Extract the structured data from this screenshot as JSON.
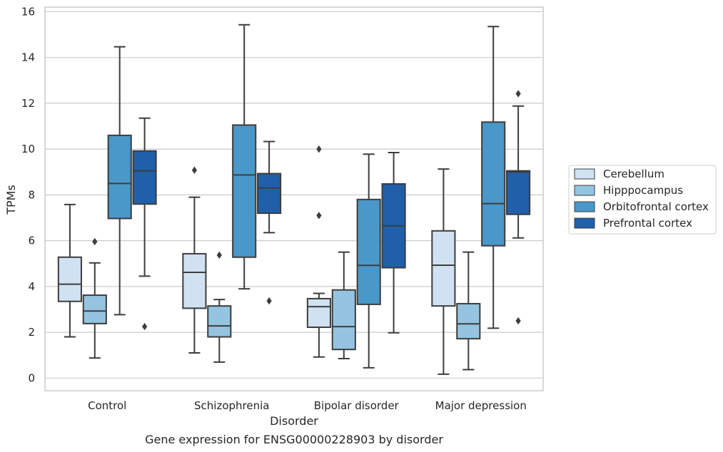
{
  "chart_data": {
    "type": "box",
    "title": "Gene expression for ENSG00000228903 by disorder",
    "xlabel": "Disorder",
    "ylabel": "TPMs",
    "ylim": [
      -0.55,
      16.2
    ],
    "yticks": [
      0,
      2,
      4,
      6,
      8,
      10,
      12,
      14,
      16
    ],
    "grid": "horizontal",
    "legend_position": "right",
    "categories": [
      "Control",
      "Schizophrenia",
      "Bipolar disorder",
      "Major depression"
    ],
    "series": [
      {
        "name": "Cerebellum",
        "color": "#d0e1f2",
        "boxes": [
          {
            "whislo": 1.8,
            "q1": 3.35,
            "med": 4.1,
            "q3": 5.28,
            "whishi": 7.58,
            "fliers": []
          },
          {
            "whislo": 1.1,
            "q1": 3.05,
            "med": 4.62,
            "q3": 5.43,
            "whishi": 7.9,
            "fliers": [
              9.08
            ]
          },
          {
            "whislo": 0.92,
            "q1": 2.22,
            "med": 3.12,
            "q3": 3.47,
            "whishi": 3.7,
            "fliers": [
              10.0,
              7.1
            ]
          },
          {
            "whislo": 0.17,
            "q1": 3.15,
            "med": 4.93,
            "q3": 6.43,
            "whishi": 9.13,
            "fliers": []
          }
        ]
      },
      {
        "name": "Hipppocampus",
        "color": "#94c4df",
        "boxes": [
          {
            "whislo": 0.88,
            "q1": 2.38,
            "med": 2.93,
            "q3": 3.62,
            "whishi": 5.03,
            "fliers": [
              5.96
            ]
          },
          {
            "whislo": 0.7,
            "q1": 1.8,
            "med": 2.28,
            "q3": 3.15,
            "whishi": 3.43,
            "fliers": [
              5.37
            ]
          },
          {
            "whislo": 0.85,
            "q1": 1.25,
            "med": 2.25,
            "q3": 3.85,
            "whishi": 5.5,
            "fliers": []
          },
          {
            "whislo": 0.37,
            "q1": 1.72,
            "med": 2.37,
            "q3": 3.25,
            "whishi": 5.5,
            "fliers": []
          }
        ]
      },
      {
        "name": "Orbitofrontal cortex",
        "color": "#4a98c9",
        "boxes": [
          {
            "whislo": 2.77,
            "q1": 6.97,
            "med": 8.5,
            "q3": 10.6,
            "whishi": 14.47,
            "fliers": []
          },
          {
            "whislo": 3.9,
            "q1": 5.28,
            "med": 8.87,
            "q3": 11.05,
            "whishi": 15.43,
            "fliers": []
          },
          {
            "whislo": 0.45,
            "q1": 3.22,
            "med": 4.92,
            "q3": 7.8,
            "whishi": 9.78,
            "fliers": []
          },
          {
            "whislo": 2.18,
            "q1": 5.78,
            "med": 7.62,
            "q3": 11.18,
            "whishi": 15.35,
            "fliers": []
          }
        ]
      },
      {
        "name": "Prefrontal cortex",
        "color": "#2060aa",
        "boxes": [
          {
            "whislo": 4.45,
            "q1": 7.6,
            "med": 9.05,
            "q3": 9.92,
            "whishi": 11.35,
            "fliers": [
              2.25
            ]
          },
          {
            "whislo": 6.35,
            "q1": 7.2,
            "med": 8.3,
            "q3": 8.93,
            "whishi": 10.33,
            "fliers": [
              3.37
            ]
          },
          {
            "whislo": 1.98,
            "q1": 4.82,
            "med": 6.65,
            "q3": 8.48,
            "whishi": 9.85,
            "fliers": []
          },
          {
            "whislo": 6.12,
            "q1": 7.15,
            "med": 9.0,
            "q3": 9.05,
            "whishi": 11.88,
            "fliers": [
              12.42,
              2.5
            ]
          }
        ]
      }
    ]
  }
}
